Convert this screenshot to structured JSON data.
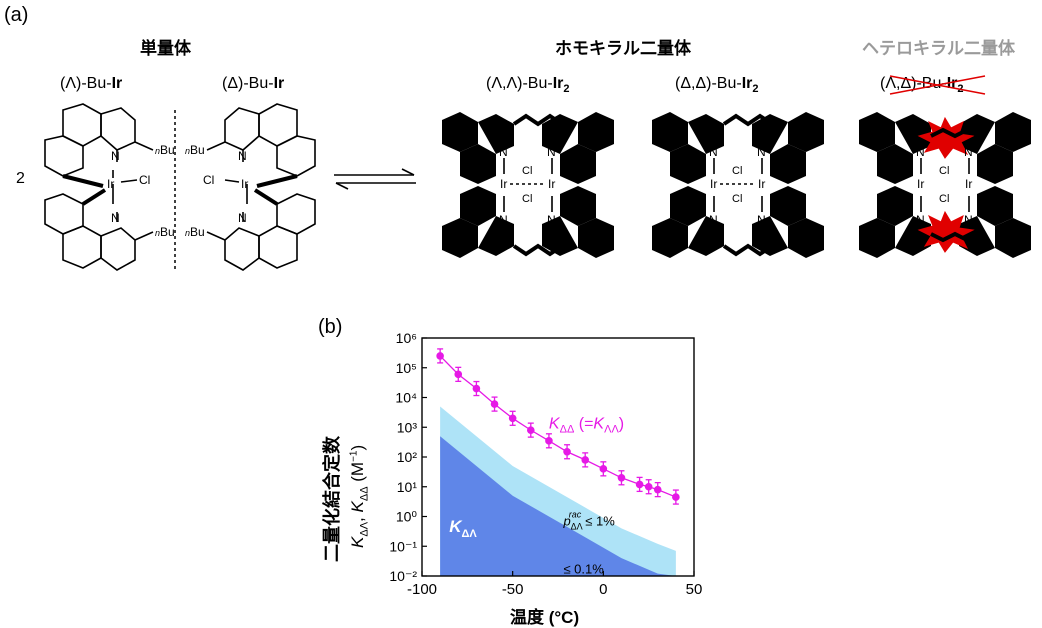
{
  "panel_a": {
    "label": "(a)",
    "monomer_header": "単量体",
    "homochiral_header": "ホモキラル二量体",
    "heterochiral_header": "ヘテロキラル二量体",
    "monomer_lambda": {
      "prefix": "(Λ)-Bu-",
      "bold": "Ir"
    },
    "monomer_delta": {
      "prefix": "(Δ)-Bu-",
      "bold": "Ir"
    },
    "dimer_LL": {
      "prefix": "(Λ,Λ)-Bu-",
      "bold": "Ir",
      "sub": "2"
    },
    "dimer_DD": {
      "prefix": "(Δ,Δ)-Bu-",
      "bold": "Ir",
      "sub": "2"
    },
    "dimer_LD": {
      "prefix": "(Λ,Δ)-Bu-",
      "bold": "Ir",
      "sub": "2"
    },
    "coefficient": "2",
    "atoms": {
      "N": "N",
      "Ir": "Ir",
      "Cl": "Cl",
      "Bu": "Bu",
      "n": "n"
    },
    "colors": {
      "heterochiral_header": "#9a9a9a",
      "strike": "#e00000",
      "burst": "#e00000"
    }
  },
  "panel_b": {
    "label": "(b)",
    "y_title_jp": "二量化結合定数",
    "y_title": "K_ΔΛ, K_ΔΔ (M⁻¹)",
    "series_label": "K_ΔΔ (=K_ΛΛ)",
    "region_label": "K_ΔΛ",
    "threshold_1": "p_ΔΛ^rac ≤ 1%",
    "threshold_2": "≤ 0.1%"
  },
  "chart_data": {
    "type": "scatter",
    "xlabel": "温度 (°C)",
    "ylabel": "K_ΔΛ, K_ΔΔ (M⁻¹)",
    "xlim": [
      -100,
      50
    ],
    "ylim": [
      0.01,
      1000000
    ],
    "yscale": "log",
    "xticks": [
      "-100",
      "-50",
      "0",
      "50"
    ],
    "yticks": [
      "10⁻²",
      "10⁻¹",
      "10⁰",
      "10¹",
      "10²",
      "10³",
      "10⁴",
      "10⁵",
      "10⁶"
    ],
    "series": [
      {
        "name": "K_ΔΔ (=K_ΛΛ)",
        "color": "#e619e6",
        "x": [
          -90,
          -80,
          -70,
          -60,
          -50,
          -40,
          -30,
          -20,
          -10,
          0,
          10,
          20,
          25,
          30,
          40
        ],
        "y": [
          250000,
          60000,
          20000,
          6000,
          2000,
          800,
          350,
          150,
          80,
          40,
          20,
          12,
          10,
          8,
          4.5
        ]
      }
    ],
    "bands": [
      {
        "label": "p_ΔΛ^rac ≤ 1%",
        "color": "#aee3f7",
        "x": [
          -90,
          -70,
          -50,
          -30,
          -10,
          10,
          30,
          40
        ],
        "upper": [
          5000,
          500,
          50,
          10,
          2,
          0.4,
          0.12,
          0.07
        ]
      },
      {
        "label": "≤ 0.1%",
        "color": "#5f86e8",
        "x": [
          -90,
          -70,
          -50,
          -30,
          -10,
          10,
          30,
          40
        ],
        "upper": [
          500,
          50,
          5,
          1,
          0.2,
          0.04,
          0.012,
          0.007
        ]
      }
    ]
  }
}
